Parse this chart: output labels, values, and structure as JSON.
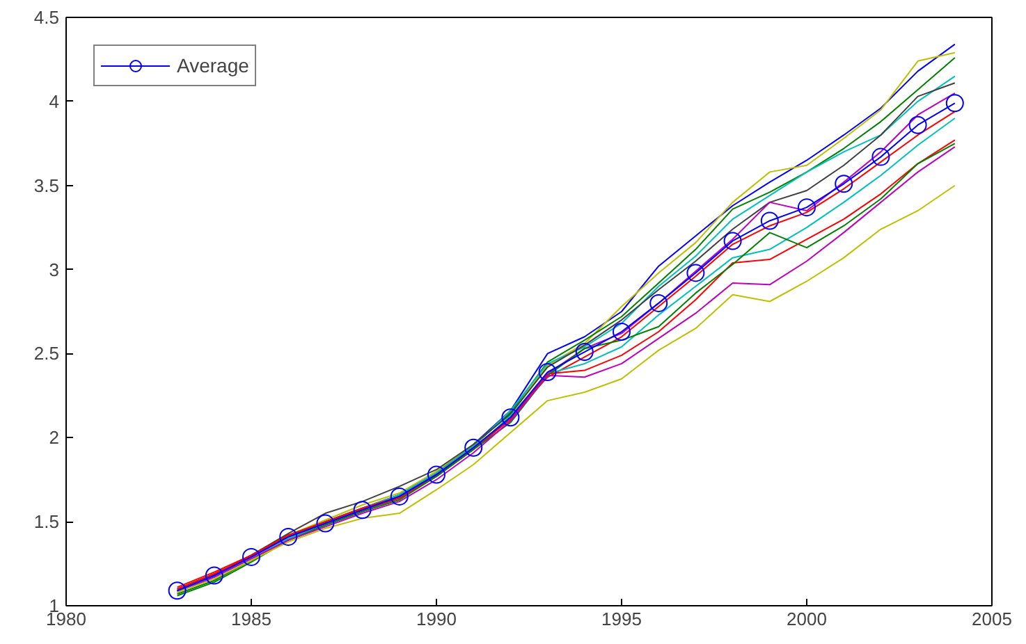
{
  "chart_data": {
    "type": "line",
    "x": [
      1983,
      1984,
      1985,
      1986,
      1987,
      1988,
      1989,
      1990,
      1991,
      1992,
      1993,
      1994,
      1995,
      1996,
      1997,
      1998,
      1999,
      2000,
      2001,
      2002,
      2003,
      2004
    ],
    "xlim": [
      1980,
      2005
    ],
    "xticks": [
      1980,
      1985,
      1990,
      1995,
      2000,
      2005
    ],
    "ylim": [
      1,
      4.5
    ],
    "yticks": [
      1,
      1.5,
      2,
      2.5,
      3,
      3.5,
      4,
      4.5
    ],
    "grid": false,
    "legend": "top left",
    "marker": "none",
    "line_style": "solid",
    "series": [
      {
        "color": "#0000ff",
        "values": [
          1.1,
          1.19,
          1.3,
          1.42,
          1.5,
          1.58,
          1.66,
          1.79,
          1.96,
          2.16,
          2.5,
          2.6,
          2.75,
          3.02,
          3.2,
          3.38,
          3.52,
          3.65,
          3.8,
          3.96,
          4.18,
          4.34
        ]
      },
      {
        "color": "#bfbf00",
        "values": [
          1.1,
          1.19,
          1.3,
          1.42,
          1.51,
          1.6,
          1.67,
          1.8,
          1.96,
          2.14,
          2.43,
          2.56,
          2.78,
          2.98,
          3.16,
          3.4,
          3.58,
          3.62,
          3.78,
          3.95,
          4.24,
          4.29
        ]
      },
      {
        "color": "#008000",
        "values": [
          1.07,
          1.15,
          1.27,
          1.4,
          1.49,
          1.57,
          1.65,
          1.78,
          1.95,
          2.15,
          2.45,
          2.58,
          2.72,
          2.92,
          3.12,
          3.36,
          3.46,
          3.58,
          3.72,
          3.88,
          4.07,
          4.26
        ]
      },
      {
        "color": "#00bfbf",
        "values": [
          1.09,
          1.18,
          1.29,
          1.41,
          1.5,
          1.58,
          1.66,
          1.79,
          1.95,
          2.16,
          2.44,
          2.54,
          2.68,
          2.9,
          3.08,
          3.3,
          3.44,
          3.58,
          3.7,
          3.8,
          4.0,
          4.15
        ]
      },
      {
        "color": "#404040",
        "values": [
          1.09,
          1.18,
          1.3,
          1.43,
          1.55,
          1.62,
          1.71,
          1.81,
          1.96,
          2.14,
          2.42,
          2.55,
          2.7,
          2.88,
          3.05,
          3.24,
          3.4,
          3.47,
          3.62,
          3.8,
          4.03,
          4.11
        ]
      },
      {
        "color": "#bf00bf",
        "values": [
          1.09,
          1.18,
          1.29,
          1.41,
          1.49,
          1.57,
          1.64,
          1.77,
          1.93,
          2.12,
          2.38,
          2.53,
          2.62,
          2.8,
          2.99,
          3.18,
          3.4,
          3.35,
          3.52,
          3.7,
          3.92,
          4.05
        ]
      },
      {
        "color": "#ff0000",
        "values": [
          1.11,
          1.2,
          1.3,
          1.42,
          1.5,
          1.58,
          1.65,
          1.78,
          1.94,
          2.12,
          2.36,
          2.48,
          2.6,
          2.78,
          2.96,
          3.15,
          3.26,
          3.34,
          3.48,
          3.64,
          3.8,
          3.94
        ]
      },
      {
        "color": "#00bfbf",
        "values": [
          1.08,
          1.17,
          1.28,
          1.4,
          1.48,
          1.56,
          1.64,
          1.77,
          1.93,
          2.13,
          2.38,
          2.44,
          2.54,
          2.73,
          2.9,
          3.07,
          3.12,
          3.25,
          3.4,
          3.56,
          3.74,
          3.9
        ]
      },
      {
        "color": "#ff0000",
        "values": [
          1.1,
          1.19,
          1.29,
          1.41,
          1.49,
          1.57,
          1.64,
          1.77,
          1.93,
          2.11,
          2.38,
          2.4,
          2.49,
          2.63,
          2.82,
          3.04,
          3.06,
          3.18,
          3.3,
          3.45,
          3.63,
          3.77
        ]
      },
      {
        "color": "#008000",
        "values": [
          1.06,
          1.14,
          1.26,
          1.39,
          1.48,
          1.56,
          1.63,
          1.77,
          1.93,
          2.09,
          2.37,
          2.53,
          2.58,
          2.66,
          2.86,
          3.03,
          3.22,
          3.13,
          3.26,
          3.42,
          3.63,
          3.75
        ]
      },
      {
        "color": "#bf00bf",
        "values": [
          1.08,
          1.17,
          1.28,
          1.39,
          1.47,
          1.55,
          1.62,
          1.75,
          1.91,
          2.1,
          2.37,
          2.36,
          2.44,
          2.59,
          2.74,
          2.92,
          2.91,
          3.05,
          3.22,
          3.4,
          3.58,
          3.73
        ]
      },
      {
        "color": "#bfbf00",
        "values": [
          1.08,
          1.16,
          1.27,
          1.38,
          1.46,
          1.52,
          1.55,
          1.69,
          1.84,
          2.03,
          2.22,
          2.27,
          2.35,
          2.52,
          2.65,
          2.85,
          2.81,
          2.93,
          3.07,
          3.24,
          3.35,
          3.5
        ]
      },
      {
        "name": "Average",
        "color": "#0000ff",
        "marker": "circle",
        "values": [
          1.09,
          1.18,
          1.29,
          1.41,
          1.49,
          1.57,
          1.65,
          1.78,
          1.94,
          2.12,
          2.39,
          2.51,
          2.63,
          2.8,
          2.98,
          3.17,
          3.29,
          3.37,
          3.51,
          3.67,
          3.86,
          3.99
        ]
      }
    ]
  }
}
